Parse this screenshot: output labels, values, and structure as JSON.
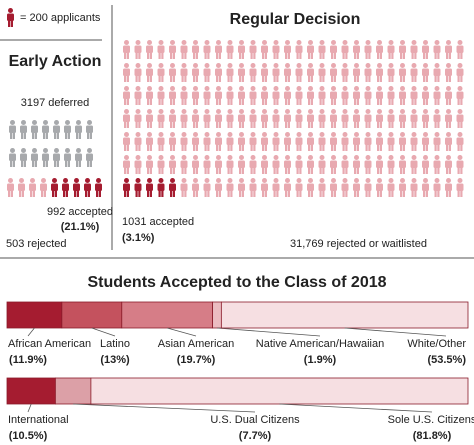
{
  "legend": {
    "label": "= 200 applicants"
  },
  "early_action": {
    "title": "Early Action",
    "deferred": "3197 deferred",
    "accepted": "992 accepted",
    "accepted_pct": "(21.1%)",
    "rejected": "503 rejected"
  },
  "regular_decision": {
    "title": "Regular Decision",
    "accepted": "1031 accepted",
    "accepted_pct": "(3.1%)",
    "rejected": "31,769 rejected or waitlisted"
  },
  "class_of_2018": {
    "title": "Students Accepted to the Class of 2018",
    "groups": [
      {
        "segments": [
          {
            "name": "African American",
            "value": 11.9,
            "value_label": "(11.9%)",
            "color": "#a51c30"
          },
          {
            "name": "Latino",
            "value": 13,
            "value_label": "(13%)",
            "color": "#c4525e"
          },
          {
            "name": "Asian American",
            "value": 19.7,
            "value_label": "(19.7%)",
            "color": "#d67d87"
          },
          {
            "name": "Native American/Hawaiian",
            "value": 1.9,
            "value_label": "(1.9%)",
            "color": "#ebbcc1"
          },
          {
            "name": "White/Other",
            "value": 53.5,
            "value_label": "(53.5%)",
            "color": "#f6dfe2"
          }
        ]
      },
      {
        "segments": [
          {
            "name": "International",
            "value": 10.5,
            "value_label": "(10.5%)",
            "color": "#a51c30"
          },
          {
            "name": "U.S. Dual Citizens",
            "value": 7.7,
            "value_label": "(7.7%)",
            "color": "#dca0a7"
          },
          {
            "name": "Sole U.S. Citizens",
            "value": 81.8,
            "value_label": "(81.8%)",
            "color": "#f6dfe2"
          }
        ]
      }
    ]
  }
}
